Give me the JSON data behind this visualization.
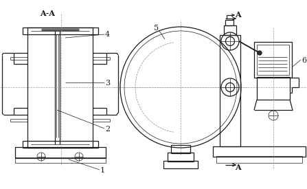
{
  "bg_color": "#ffffff",
  "line_color": "#1a1a1a",
  "lc2": "#444444",
  "thin": 0.5,
  "med": 0.9,
  "thick": 1.3,
  "figsize": [
    4.47,
    2.75
  ],
  "dpi": 100,
  "xlim": [
    0,
    447
  ],
  "ylim": [
    0,
    275
  ]
}
